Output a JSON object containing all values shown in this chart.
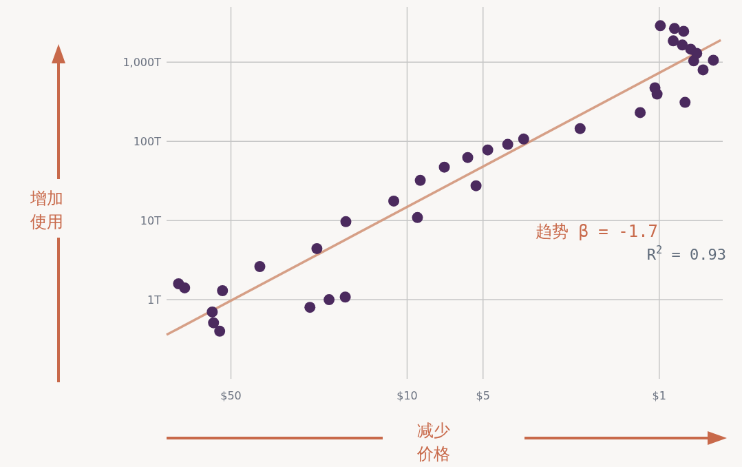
{
  "chart_data": {
    "type": "scatter",
    "xlabel": "减少价格",
    "ylabel": "增加使用",
    "log": "xy",
    "grid": true,
    "xlim": [
      90,
      0.56
    ],
    "ylim": [
      0.1,
      5000
    ],
    "xticks": [
      {
        "value": 50,
        "label": "$50"
      },
      {
        "value": 10,
        "label": "$10"
      },
      {
        "value": 5,
        "label": "$5"
      },
      {
        "value": 1,
        "label": "$1"
      }
    ],
    "yticks": [
      {
        "value": 1,
        "label": "1T"
      },
      {
        "value": 10,
        "label": "10T"
      },
      {
        "value": 100,
        "label": "100T"
      },
      {
        "value": 1000,
        "label": "1,000T"
      }
    ],
    "series": [
      {
        "marker": "circle",
        "color": "#4b2a5e",
        "x": [
          80.7,
          76.3,
          54.0,
          59.3,
          58.6,
          55.4,
          38.4,
          24.3,
          22.8,
          20.4,
          17.6,
          17.5,
          11.3,
          9.1,
          8.87,
          7.12,
          5.75,
          5.33,
          4.79,
          3.99,
          3.45,
          2.06,
          1.19,
          1.04,
          1.02,
          0.99,
          0.88,
          0.87,
          0.81,
          0.8,
          0.79,
          0.75,
          0.73,
          0.71,
          0.67,
          0.61
        ],
        "values": [
          1.59,
          1.41,
          1.3,
          0.7,
          0.51,
          0.4,
          2.62,
          0.8,
          4.42,
          1.0,
          1.08,
          9.67,
          17.6,
          10.9,
          32.2,
          47.2,
          62.5,
          27.5,
          78,
          91.6,
          107,
          145,
          231,
          475,
          396,
          2890,
          1860,
          2670,
          1650,
          2460,
          311,
          1460,
          1040,
          1295,
          800,
          1060
        ]
      },
      {
        "type": "line",
        "name": "趋势 β = -1.7",
        "color": "#d49a80",
        "x": [
          90,
          0.57
        ],
        "values": [
          0.36,
          1900
        ]
      }
    ],
    "annotations": [
      "R$^{2}$ = 0.93"
    ]
  }
}
